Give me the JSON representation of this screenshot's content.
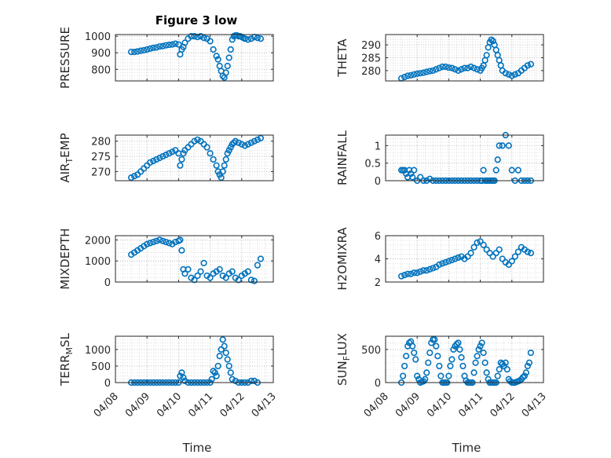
{
  "figure": {
    "title": "Figure 3 low",
    "xlabel": "Time",
    "x_ticks": [
      "04/08",
      "04/09",
      "04/10",
      "04/11",
      "04/12",
      "04/13"
    ],
    "marker_color": "#0072BD",
    "grid": "on (major and minor, dotted)"
  },
  "chart_data": [
    {
      "type": "scatter",
      "ylabel": "PRESSURE",
      "ylim": [
        730,
        1010
      ],
      "yticks": [
        "800",
        "900",
        "1000"
      ],
      "x": [
        0.5,
        0.6,
        0.7,
        0.8,
        0.9,
        1.0,
        1.1,
        1.2,
        1.3,
        1.4,
        1.5,
        1.6,
        1.7,
        1.8,
        1.9,
        2.0,
        2.05,
        2.1,
        2.15,
        2.2,
        2.3,
        2.4,
        2.5,
        2.6,
        2.7,
        2.8,
        2.9,
        3.0,
        3.1,
        3.2,
        3.25,
        3.3,
        3.35,
        3.4,
        3.45,
        3.5,
        3.55,
        3.6,
        3.65,
        3.7,
        3.75,
        3.8,
        3.85,
        3.9,
        3.95,
        4.0,
        4.05,
        4.1,
        4.2,
        4.3,
        4.4,
        4.5,
        4.6
      ],
      "values": [
        905,
        905,
        908,
        912,
        915,
        920,
        925,
        930,
        932,
        938,
        940,
        945,
        948,
        950,
        955,
        950,
        890,
        920,
        935,
        960,
        985,
        1000,
        1000,
        995,
        1000,
        990,
        985,
        970,
        920,
        880,
        860,
        820,
        790,
        760,
        750,
        780,
        820,
        870,
        920,
        980,
        1000,
        1005,
        1005,
        1000,
        1000,
        995,
        990,
        985,
        980,
        985,
        995,
        990,
        985
      ]
    },
    {
      "type": "scatter",
      "ylabel": "THETA",
      "ylim": [
        276,
        294
      ],
      "yticks": [
        "280",
        "285",
        "290"
      ],
      "x": [
        0.5,
        0.6,
        0.7,
        0.8,
        0.9,
        1.0,
        1.1,
        1.2,
        1.3,
        1.4,
        1.5,
        1.6,
        1.7,
        1.8,
        1.9,
        2.0,
        2.1,
        2.2,
        2.3,
        2.4,
        2.5,
        2.6,
        2.7,
        2.8,
        2.9,
        3.0,
        3.05,
        3.1,
        3.15,
        3.2,
        3.25,
        3.3,
        3.35,
        3.4,
        3.45,
        3.5,
        3.55,
        3.6,
        3.65,
        3.7,
        3.8,
        3.9,
        4.0,
        4.1,
        4.2,
        4.3,
        4.4,
        4.5,
        4.6
      ],
      "values": [
        277,
        277.5,
        278,
        278.2,
        278.5,
        278.8,
        279,
        279.2,
        279.5,
        279.8,
        280,
        280.5,
        281,
        281.5,
        281.5,
        281.2,
        281,
        280.5,
        280,
        280.5,
        281,
        281,
        281.5,
        281,
        280.5,
        280,
        281,
        282,
        284,
        286,
        289,
        291,
        292,
        291.5,
        290,
        288,
        286,
        284,
        282,
        280,
        279,
        278.5,
        278,
        278.5,
        279,
        280,
        281,
        282,
        282.5
      ]
    },
    {
      "type": "scatter",
      "ylabel": "AIR_TEMP",
      "ylim": [
        267,
        282
      ],
      "yticks": [
        "270",
        "275",
        "280"
      ],
      "x": [
        0.5,
        0.6,
        0.7,
        0.8,
        0.9,
        1.0,
        1.1,
        1.2,
        1.3,
        1.4,
        1.5,
        1.6,
        1.7,
        1.8,
        1.9,
        2.0,
        2.05,
        2.1,
        2.15,
        2.2,
        2.3,
        2.4,
        2.5,
        2.6,
        2.7,
        2.8,
        2.9,
        3.0,
        3.1,
        3.2,
        3.25,
        3.3,
        3.35,
        3.4,
        3.45,
        3.5,
        3.55,
        3.6,
        3.65,
        3.7,
        3.75,
        3.8,
        3.9,
        4.0,
        4.1,
        4.2,
        4.3,
        4.4,
        4.5,
        4.6
      ],
      "values": [
        268,
        268.5,
        269,
        270,
        271,
        272,
        273,
        273.5,
        274,
        274.5,
        275,
        275.5,
        276,
        276.5,
        277,
        276,
        272,
        274,
        276,
        277,
        278,
        279,
        280,
        280.5,
        280,
        279,
        278,
        276,
        274,
        272,
        270,
        269,
        268,
        270,
        272,
        274,
        276,
        277,
        278,
        279,
        279.5,
        280,
        279.5,
        279,
        278.5,
        279,
        279.5,
        280,
        280.5,
        281
      ]
    },
    {
      "type": "scatter",
      "ylabel": "RAINFALL",
      "ylim": [
        0,
        1.3
      ],
      "yticks": [
        "0",
        "0.5",
        "1"
      ],
      "x": [
        0.5,
        0.55,
        0.6,
        0.65,
        0.7,
        0.75,
        0.8,
        0.85,
        0.9,
        1.0,
        1.1,
        1.2,
        1.3,
        1.4,
        1.5,
        1.6,
        1.7,
        1.8,
        1.9,
        2.0,
        2.1,
        2.2,
        2.3,
        2.4,
        2.5,
        2.6,
        2.7,
        2.8,
        2.9,
        3.0,
        3.05,
        3.1,
        3.15,
        3.2,
        3.25,
        3.3,
        3.35,
        3.4,
        3.45,
        3.5,
        3.55,
        3.6,
        3.7,
        3.8,
        3.9,
        4.0,
        4.1,
        4.2,
        4.3,
        4.4,
        4.5,
        4.6
      ],
      "values": [
        0.3,
        0.3,
        0.3,
        0.2,
        0.1,
        0.3,
        0.2,
        0.1,
        0.3,
        0,
        0.1,
        0,
        0,
        0.05,
        0,
        0,
        0,
        0,
        0,
        0,
        0,
        0,
        0,
        0,
        0,
        0,
        0,
        0,
        0,
        0,
        0,
        0.3,
        0,
        0,
        0,
        0,
        0,
        0,
        0,
        0.3,
        0.6,
        1.0,
        1.0,
        1.3,
        1.0,
        0.3,
        0,
        0.3,
        0,
        0,
        0,
        0
      ]
    },
    {
      "type": "scatter",
      "ylabel": "MIXDEPTH",
      "ylim": [
        0,
        2200
      ],
      "yticks": [
        "0",
        "1000",
        "2000"
      ],
      "x": [
        0.5,
        0.6,
        0.7,
        0.8,
        0.9,
        1.0,
        1.1,
        1.2,
        1.3,
        1.4,
        1.5,
        1.6,
        1.7,
        1.8,
        1.9,
        2.0,
        2.05,
        2.1,
        2.15,
        2.2,
        2.3,
        2.4,
        2.5,
        2.6,
        2.7,
        2.8,
        2.9,
        3.0,
        3.1,
        3.2,
        3.3,
        3.4,
        3.5,
        3.6,
        3.7,
        3.8,
        3.9,
        4.0,
        4.1,
        4.2,
        4.3,
        4.4,
        4.5,
        4.6
      ],
      "values": [
        1300,
        1400,
        1500,
        1600,
        1700,
        1800,
        1850,
        1900,
        1950,
        2000,
        1950,
        1900,
        1850,
        1800,
        1900,
        1950,
        2000,
        1500,
        600,
        400,
        600,
        200,
        100,
        300,
        500,
        900,
        300,
        200,
        400,
        500,
        600,
        300,
        200,
        400,
        500,
        200,
        100,
        300,
        400,
        500,
        100,
        50,
        800,
        1100
      ]
    },
    {
      "type": "scatter",
      "ylabel": "H2OMIXRA",
      "ylim": [
        2,
        6
      ],
      "yticks": [
        "2",
        "4",
        "6"
      ],
      "x": [
        0.5,
        0.6,
        0.7,
        0.8,
        0.9,
        1.0,
        1.1,
        1.2,
        1.3,
        1.4,
        1.5,
        1.6,
        1.7,
        1.8,
        1.9,
        2.0,
        2.1,
        2.2,
        2.3,
        2.4,
        2.5,
        2.6,
        2.7,
        2.8,
        2.9,
        3.0,
        3.1,
        3.2,
        3.3,
        3.4,
        3.5,
        3.6,
        3.7,
        3.8,
        3.9,
        4.0,
        4.1,
        4.2,
        4.3,
        4.4,
        4.5,
        4.6
      ],
      "values": [
        2.5,
        2.6,
        2.7,
        2.7,
        2.8,
        2.8,
        2.9,
        3.0,
        3.0,
        3.1,
        3.2,
        3.3,
        3.5,
        3.6,
        3.7,
        3.8,
        3.9,
        4.0,
        4.1,
        4.2,
        4.0,
        4.2,
        4.5,
        5.0,
        5.4,
        5.5,
        5.2,
        4.8,
        4.5,
        4.2,
        4.5,
        4.8,
        4.0,
        3.7,
        3.5,
        3.8,
        4.2,
        4.6,
        5.0,
        4.8,
        4.6,
        4.5
      ]
    },
    {
      "type": "scatter",
      "ylabel": "TERR_MSL",
      "ylim": [
        0,
        1400
      ],
      "yticks": [
        "0",
        "500",
        "1000"
      ],
      "x": [
        0.5,
        0.6,
        0.7,
        0.8,
        0.9,
        1.0,
        1.1,
        1.2,
        1.3,
        1.4,
        1.5,
        1.6,
        1.7,
        1.8,
        1.9,
        2.0,
        2.05,
        2.1,
        2.15,
        2.2,
        2.3,
        2.4,
        2.5,
        2.6,
        2.7,
        2.8,
        2.9,
        3.0,
        3.05,
        3.1,
        3.15,
        3.2,
        3.25,
        3.3,
        3.35,
        3.4,
        3.45,
        3.5,
        3.55,
        3.6,
        3.65,
        3.7,
        3.8,
        3.9,
        4.0,
        4.1,
        4.2,
        4.3,
        4.4,
        4.5
      ],
      "values": [
        0,
        0,
        0,
        0,
        0,
        0,
        0,
        0,
        0,
        0,
        0,
        0,
        0,
        0,
        0,
        0,
        200,
        300,
        150,
        50,
        0,
        0,
        0,
        0,
        0,
        0,
        0,
        0,
        100,
        350,
        300,
        200,
        500,
        800,
        1000,
        1300,
        1100,
        900,
        700,
        500,
        300,
        100,
        50,
        0,
        0,
        0,
        0,
        50,
        50,
        0
      ]
    },
    {
      "type": "scatter",
      "ylabel": "SUN_FLUX",
      "ylim": [
        0,
        700
      ],
      "yticks": [
        "0",
        "500"
      ],
      "x": [
        0.5,
        0.55,
        0.6,
        0.65,
        0.7,
        0.75,
        0.8,
        0.85,
        0.9,
        0.95,
        1.0,
        1.05,
        1.1,
        1.15,
        1.2,
        1.25,
        1.3,
        1.35,
        1.4,
        1.45,
        1.5,
        1.55,
        1.6,
        1.65,
        1.7,
        1.75,
        1.8,
        1.85,
        1.9,
        1.95,
        2.0,
        2.05,
        2.1,
        2.15,
        2.2,
        2.25,
        2.3,
        2.35,
        2.4,
        2.45,
        2.5,
        2.55,
        2.6,
        2.65,
        2.7,
        2.75,
        2.8,
        2.85,
        2.9,
        2.95,
        3.0,
        3.05,
        3.1,
        3.15,
        3.2,
        3.25,
        3.3,
        3.35,
        3.4,
        3.45,
        3.5,
        3.55,
        3.6,
        3.65,
        3.7,
        3.75,
        3.8,
        3.85,
        3.9,
        3.95,
        4.0,
        4.05,
        4.1,
        4.15,
        4.2,
        4.25,
        4.3,
        4.35,
        4.4,
        4.45,
        4.5,
        4.55,
        4.6
      ],
      "values": [
        0,
        100,
        250,
        400,
        550,
        600,
        620,
        550,
        450,
        350,
        100,
        50,
        0,
        10,
        20,
        50,
        150,
        300,
        450,
        600,
        650,
        650,
        550,
        400,
        250,
        100,
        0,
        0,
        0,
        0,
        100,
        250,
        350,
        500,
        550,
        580,
        600,
        500,
        380,
        250,
        100,
        30,
        0,
        0,
        0,
        0,
        150,
        300,
        400,
        500,
        550,
        600,
        450,
        300,
        150,
        50,
        0,
        0,
        0,
        0,
        0,
        100,
        200,
        300,
        280,
        250,
        300,
        200,
        50,
        20,
        0,
        0,
        0,
        10,
        20,
        30,
        50,
        80,
        100,
        150,
        250,
        300,
        450
      ]
    }
  ]
}
